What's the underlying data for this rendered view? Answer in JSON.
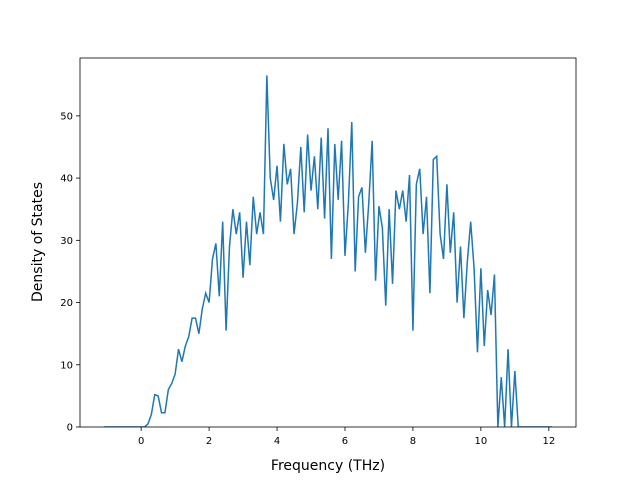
{
  "chart_data": {
    "type": "line",
    "xlabel": "Frequency (THz)",
    "ylabel": "Density of States",
    "x": [
      -1.1,
      -1.0,
      -0.9,
      -0.8,
      -0.7,
      -0.6,
      -0.5,
      -0.4,
      -0.3,
      -0.2,
      -0.1,
      0.0,
      0.1,
      0.2,
      0.3,
      0.4,
      0.5,
      0.6,
      0.7,
      0.8,
      0.9,
      1.0,
      1.1,
      1.2,
      1.3,
      1.4,
      1.5,
      1.6,
      1.7,
      1.8,
      1.9,
      2.0,
      2.1,
      2.2,
      2.3,
      2.4,
      2.5,
      2.6,
      2.7,
      2.8,
      2.9,
      3.0,
      3.1,
      3.2,
      3.3,
      3.4,
      3.5,
      3.6,
      3.7,
      3.8,
      3.9,
      4.0,
      4.1,
      4.2,
      4.3,
      4.4,
      4.5,
      4.6,
      4.7,
      4.8,
      4.9,
      5.0,
      5.1,
      5.2,
      5.3,
      5.4,
      5.5,
      5.6,
      5.7,
      5.8,
      5.9,
      6.0,
      6.1,
      6.2,
      6.3,
      6.4,
      6.5,
      6.6,
      6.7,
      6.8,
      6.9,
      7.0,
      7.1,
      7.2,
      7.3,
      7.4,
      7.5,
      7.6,
      7.7,
      7.8,
      7.9,
      8.0,
      8.1,
      8.2,
      8.3,
      8.4,
      8.5,
      8.6,
      8.7,
      8.8,
      8.9,
      9.0,
      9.1,
      9.2,
      9.3,
      9.4,
      9.5,
      9.6,
      9.7,
      9.8,
      9.9,
      10.0,
      10.1,
      10.2,
      10.3,
      10.4,
      10.5,
      10.6,
      10.7,
      10.8,
      10.9,
      11.0,
      11.1,
      11.2,
      11.3,
      11.4,
      11.5,
      11.6,
      11.7,
      11.8,
      11.9,
      12.0,
      12.1
    ],
    "series": [
      {
        "color": "#1f77b4",
        "values": [
          0,
          0,
          0,
          0,
          0,
          0,
          0,
          0,
          0,
          0,
          0,
          0,
          0,
          0.5,
          2,
          5.2,
          5,
          2.3,
          2.3,
          6,
          7,
          8.5,
          12.5,
          10.5,
          13,
          14.5,
          17.5,
          17.5,
          15,
          19,
          21.5,
          20,
          27,
          29.5,
          21,
          33,
          15.5,
          29,
          35,
          31,
          34.5,
          24,
          33,
          26,
          37,
          31,
          34.5,
          31,
          56.5,
          40,
          36.5,
          42,
          33,
          45.5,
          39,
          41.5,
          31,
          36,
          45,
          34.5,
          47,
          38,
          43.5,
          35,
          46.5,
          33.5,
          48,
          27,
          45.5,
          36.5,
          46,
          27.5,
          36,
          49,
          25,
          37,
          38.5,
          28,
          36,
          46,
          23.5,
          35.5,
          32,
          19.5,
          35,
          23,
          38,
          35,
          38,
          33,
          40.5,
          15.5,
          39,
          41.5,
          31,
          37,
          21.5,
          43,
          43.5,
          31,
          27,
          39,
          28,
          34.5,
          20,
          29,
          17.5,
          26.5,
          33,
          25.5,
          12,
          25.5,
          13,
          22,
          18,
          24.5,
          0,
          8,
          0,
          12.5,
          0,
          9,
          0,
          0,
          0,
          0,
          0,
          0,
          0,
          0,
          0,
          0,
          0
        ]
      }
    ],
    "xlim": [
      -1.8,
      12.8
    ],
    "ylim": [
      0,
      59.3
    ],
    "xticks": [
      0,
      2,
      4,
      6,
      8,
      10,
      12
    ],
    "yticks": [
      0,
      10,
      20,
      30,
      40,
      50
    ]
  }
}
